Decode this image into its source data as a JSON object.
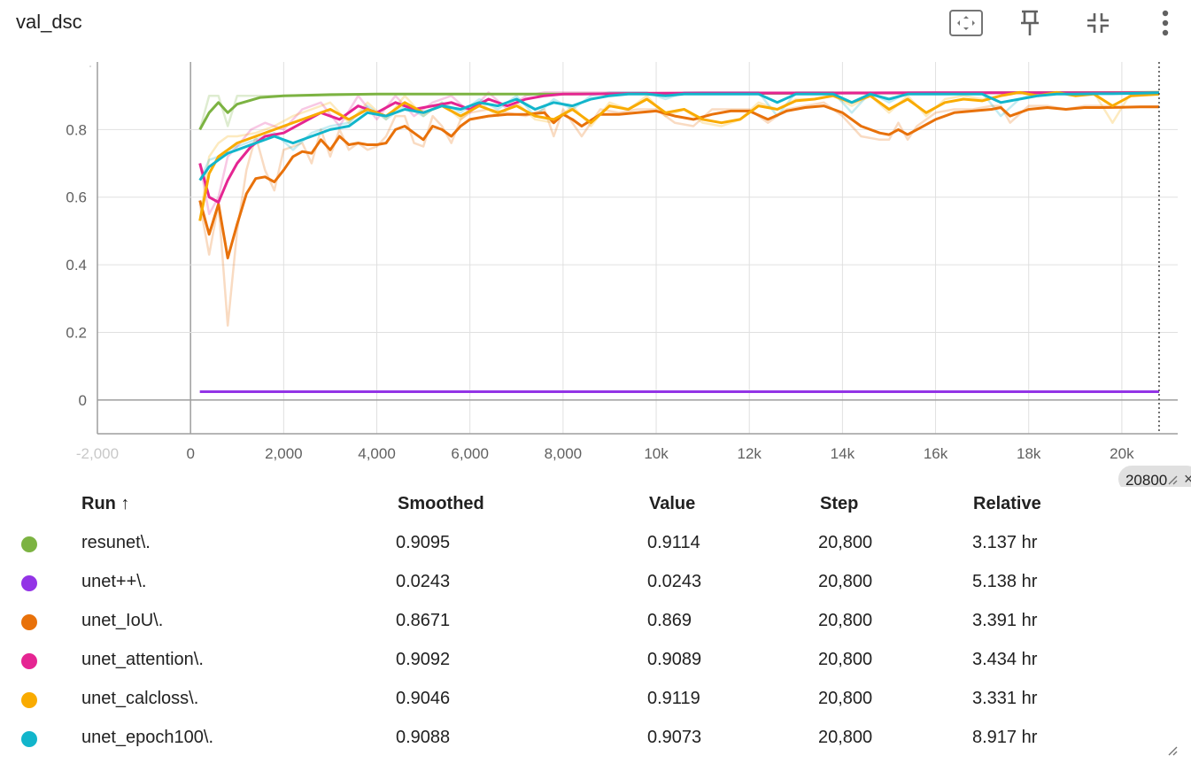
{
  "card": {
    "title": "val_dsc",
    "toolbar": [
      {
        "name": "fit-domain-icon"
      },
      {
        "name": "pin-icon"
      },
      {
        "name": "collapse-icon"
      },
      {
        "name": "more-vert-icon"
      }
    ]
  },
  "chart_data": {
    "type": "line",
    "title": "",
    "xlabel": "",
    "ylabel": "",
    "xlim": [
      -2000,
      21200
    ],
    "ylim": [
      -0.1,
      1.0
    ],
    "grid": true,
    "x_ticks": [
      {
        "v": -2000,
        "label": "-2,000"
      },
      {
        "v": 0,
        "label": "0"
      },
      {
        "v": 2000,
        "label": "2,000"
      },
      {
        "v": 4000,
        "label": "4,000"
      },
      {
        "v": 6000,
        "label": "6,000"
      },
      {
        "v": 8000,
        "label": "8,000"
      },
      {
        "v": 10000,
        "label": "10k"
      },
      {
        "v": 12000,
        "label": "12k"
      },
      {
        "v": 14000,
        "label": "14k"
      },
      {
        "v": 16000,
        "label": "16k"
      },
      {
        "v": 18000,
        "label": "18k"
      },
      {
        "v": 20000,
        "label": "20k"
      }
    ],
    "y_ticks": [
      {
        "v": 0,
        "label": "0"
      },
      {
        "v": 0.2,
        "label": "0.2"
      },
      {
        "v": 0.4,
        "label": "0.4"
      },
      {
        "v": 0.6,
        "label": "0.6"
      },
      {
        "v": 0.8,
        "label": "0.8"
      }
    ],
    "cursor": {
      "x": 20800,
      "label": "20800"
    },
    "series": [
      {
        "name": "resunet\\.",
        "color": "#7cb342",
        "x": [
          200,
          400,
          600,
          800,
          1000,
          1500,
          2000,
          3000,
          4000,
          6000,
          8000,
          10000,
          12000,
          14000,
          16000,
          18000,
          20800
        ],
        "y": [
          0.8,
          0.85,
          0.88,
          0.85,
          0.875,
          0.895,
          0.9,
          0.903,
          0.905,
          0.905,
          0.905,
          0.907,
          0.907,
          0.908,
          0.908,
          0.909,
          0.9095
        ],
        "raw": [
          0.8,
          0.9,
          0.9,
          0.81,
          0.9,
          0.9,
          0.9,
          0.905,
          0.905,
          0.905,
          0.905,
          0.908,
          0.908,
          0.908,
          0.908,
          0.91,
          0.9114
        ]
      },
      {
        "name": "unet++\\.",
        "color": "#9334e6",
        "x": [
          200,
          20800
        ],
        "y": [
          0.0243,
          0.0243
        ],
        "raw": [
          0.0243,
          0.0243
        ]
      },
      {
        "name": "unet_IoU\\.",
        "color": "#e8710a",
        "x": [
          200,
          400,
          600,
          800,
          1000,
          1200,
          1400,
          1600,
          1800,
          2000,
          2200,
          2400,
          2600,
          2800,
          3000,
          3200,
          3400,
          3600,
          3800,
          4000,
          4200,
          4400,
          4600,
          4800,
          5000,
          5200,
          5400,
          5600,
          5800,
          6000,
          6400,
          6800,
          7200,
          7600,
          7800,
          8000,
          8200,
          8400,
          8800,
          9200,
          9600,
          10000,
          10400,
          10800,
          11200,
          11600,
          12000,
          12400,
          12800,
          13200,
          13600,
          14000,
          14400,
          14800,
          15000,
          15200,
          15400,
          15600,
          16000,
          16400,
          16800,
          17200,
          17400,
          17600,
          18000,
          18400,
          18800,
          19200,
          19600,
          20000,
          20400,
          20800
        ],
        "y": [
          0.59,
          0.49,
          0.58,
          0.42,
          0.52,
          0.61,
          0.655,
          0.66,
          0.645,
          0.68,
          0.72,
          0.735,
          0.73,
          0.77,
          0.74,
          0.78,
          0.755,
          0.76,
          0.755,
          0.755,
          0.76,
          0.8,
          0.81,
          0.79,
          0.77,
          0.81,
          0.8,
          0.78,
          0.81,
          0.83,
          0.84,
          0.845,
          0.845,
          0.85,
          0.82,
          0.845,
          0.83,
          0.81,
          0.845,
          0.845,
          0.85,
          0.855,
          0.84,
          0.83,
          0.845,
          0.855,
          0.855,
          0.83,
          0.855,
          0.865,
          0.87,
          0.85,
          0.81,
          0.79,
          0.785,
          0.8,
          0.785,
          0.8,
          0.83,
          0.85,
          0.855,
          0.86,
          0.865,
          0.84,
          0.86,
          0.865,
          0.86,
          0.865,
          0.865,
          0.866,
          0.867,
          0.8671
        ],
        "raw": [
          0.58,
          0.43,
          0.58,
          0.22,
          0.5,
          0.68,
          0.78,
          0.68,
          0.62,
          0.74,
          0.75,
          0.76,
          0.7,
          0.8,
          0.72,
          0.8,
          0.74,
          0.76,
          0.74,
          0.75,
          0.78,
          0.84,
          0.84,
          0.76,
          0.75,
          0.84,
          0.81,
          0.76,
          0.83,
          0.85,
          0.86,
          0.85,
          0.84,
          0.86,
          0.78,
          0.86,
          0.82,
          0.78,
          0.86,
          0.85,
          0.86,
          0.86,
          0.82,
          0.81,
          0.86,
          0.86,
          0.86,
          0.82,
          0.86,
          0.87,
          0.88,
          0.84,
          0.78,
          0.77,
          0.77,
          0.82,
          0.77,
          0.81,
          0.85,
          0.86,
          0.86,
          0.87,
          0.87,
          0.82,
          0.87,
          0.87,
          0.86,
          0.87,
          0.87,
          0.867,
          0.868,
          0.869
        ]
      },
      {
        "name": "unet_attention\\.",
        "color": "#e52592",
        "x": [
          200,
          400,
          600,
          800,
          1000,
          1300,
          1600,
          2000,
          2400,
          2800,
          3200,
          3600,
          4000,
          4400,
          4800,
          5200,
          5600,
          6000,
          6400,
          6800,
          7200,
          7600,
          8000,
          8400,
          9000,
          10000,
          11000,
          12000,
          14000,
          16000,
          18000,
          20800
        ],
        "y": [
          0.7,
          0.6,
          0.585,
          0.65,
          0.7,
          0.75,
          0.78,
          0.79,
          0.82,
          0.85,
          0.83,
          0.87,
          0.85,
          0.88,
          0.86,
          0.87,
          0.88,
          0.86,
          0.89,
          0.87,
          0.89,
          0.9,
          0.905,
          0.905,
          0.906,
          0.907,
          0.908,
          0.908,
          0.908,
          0.909,
          0.909,
          0.9092
        ],
        "raw": [
          0.7,
          0.55,
          0.6,
          0.72,
          0.75,
          0.8,
          0.82,
          0.8,
          0.86,
          0.88,
          0.81,
          0.9,
          0.83,
          0.9,
          0.84,
          0.88,
          0.9,
          0.85,
          0.91,
          0.86,
          0.9,
          0.91,
          0.91,
          0.91,
          0.91,
          0.91,
          0.91,
          0.91,
          0.91,
          0.91,
          0.91,
          0.9089
        ]
      },
      {
        "name": "unet_calcloss\\.",
        "color": "#f9ab00",
        "x": [
          200,
          400,
          600,
          800,
          1000,
          1400,
          1800,
          2200,
          2600,
          3000,
          3400,
          3800,
          4200,
          4600,
          5000,
          5400,
          5800,
          6200,
          6600,
          7000,
          7400,
          7800,
          8200,
          8600,
          9000,
          9400,
          9800,
          10200,
          10600,
          11000,
          11400,
          11800,
          12200,
          12600,
          13000,
          13400,
          13800,
          14200,
          14600,
          15000,
          15400,
          15800,
          16200,
          16600,
          17000,
          17400,
          17800,
          18200,
          18600,
          19000,
          19400,
          19800,
          20200,
          20800
        ],
        "y": [
          0.53,
          0.67,
          0.72,
          0.74,
          0.76,
          0.78,
          0.8,
          0.82,
          0.84,
          0.86,
          0.83,
          0.86,
          0.84,
          0.88,
          0.85,
          0.87,
          0.84,
          0.87,
          0.85,
          0.87,
          0.84,
          0.83,
          0.86,
          0.82,
          0.87,
          0.86,
          0.89,
          0.85,
          0.86,
          0.83,
          0.82,
          0.83,
          0.87,
          0.86,
          0.885,
          0.89,
          0.9,
          0.88,
          0.9,
          0.86,
          0.89,
          0.85,
          0.88,
          0.89,
          0.885,
          0.9,
          0.91,
          0.9,
          0.91,
          0.9,
          0.905,
          0.87,
          0.9,
          0.9046
        ],
        "raw": [
          0.53,
          0.72,
          0.76,
          0.78,
          0.78,
          0.79,
          0.81,
          0.84,
          0.86,
          0.88,
          0.82,
          0.88,
          0.83,
          0.9,
          0.84,
          0.88,
          0.83,
          0.88,
          0.84,
          0.88,
          0.83,
          0.82,
          0.87,
          0.81,
          0.88,
          0.86,
          0.9,
          0.84,
          0.86,
          0.82,
          0.81,
          0.83,
          0.88,
          0.86,
          0.89,
          0.89,
          0.9,
          0.87,
          0.9,
          0.85,
          0.9,
          0.84,
          0.89,
          0.9,
          0.89,
          0.9,
          0.91,
          0.9,
          0.91,
          0.9,
          0.91,
          0.82,
          0.91,
          0.9119
        ]
      },
      {
        "name": "unet_epoch100\\.",
        "color": "#12b5cb",
        "x": [
          200,
          400,
          600,
          800,
          1000,
          1400,
          1800,
          2200,
          2600,
          3000,
          3400,
          3800,
          4200,
          4600,
          5000,
          5400,
          5800,
          6200,
          6600,
          7000,
          7400,
          7800,
          8200,
          8600,
          9000,
          9400,
          9800,
          10200,
          10600,
          11000,
          11400,
          11800,
          12200,
          12600,
          13000,
          13400,
          13800,
          14200,
          14600,
          15000,
          15400,
          15800,
          16200,
          16600,
          17000,
          17400,
          17800,
          18200,
          18600,
          19000,
          19400,
          19800,
          20200,
          20800
        ],
        "y": [
          0.65,
          0.69,
          0.71,
          0.73,
          0.74,
          0.76,
          0.78,
          0.76,
          0.78,
          0.8,
          0.81,
          0.85,
          0.84,
          0.86,
          0.85,
          0.87,
          0.86,
          0.88,
          0.87,
          0.89,
          0.86,
          0.88,
          0.87,
          0.89,
          0.9,
          0.905,
          0.905,
          0.9,
          0.905,
          0.905,
          0.905,
          0.905,
          0.905,
          0.88,
          0.905,
          0.905,
          0.905,
          0.88,
          0.905,
          0.89,
          0.905,
          0.905,
          0.905,
          0.905,
          0.905,
          0.88,
          0.89,
          0.9,
          0.905,
          0.905,
          0.906,
          0.906,
          0.907,
          0.9088
        ],
        "raw": [
          0.65,
          0.71,
          0.72,
          0.74,
          0.75,
          0.77,
          0.79,
          0.74,
          0.79,
          0.81,
          0.82,
          0.87,
          0.83,
          0.87,
          0.84,
          0.88,
          0.85,
          0.89,
          0.86,
          0.9,
          0.84,
          0.89,
          0.86,
          0.9,
          0.91,
          0.91,
          0.91,
          0.89,
          0.91,
          0.91,
          0.91,
          0.91,
          0.91,
          0.84,
          0.91,
          0.91,
          0.91,
          0.85,
          0.91,
          0.88,
          0.91,
          0.91,
          0.91,
          0.91,
          0.91,
          0.84,
          0.89,
          0.91,
          0.91,
          0.91,
          0.91,
          0.91,
          0.91,
          0.9073
        ]
      }
    ]
  },
  "table": {
    "headers": {
      "run": "Run ↑",
      "smoothed": "Smoothed",
      "value": "Value",
      "step": "Step",
      "relative": "Relative"
    },
    "rows": [
      {
        "color": "#7cb342",
        "run": "resunet\\.",
        "smoothed": "0.9095",
        "value": "0.9114",
        "step": "20,800",
        "relative": "3.137 hr"
      },
      {
        "color": "#9334e6",
        "run": "unet++\\.",
        "smoothed": "0.0243",
        "value": "0.0243",
        "step": "20,800",
        "relative": "5.138 hr"
      },
      {
        "color": "#e8710a",
        "run": "unet_IoU\\.",
        "smoothed": "0.8671",
        "value": "0.869",
        "step": "20,800",
        "relative": "3.391 hr"
      },
      {
        "color": "#e52592",
        "run": "unet_attention\\.",
        "smoothed": "0.9092",
        "value": "0.9089",
        "step": "20,800",
        "relative": "3.434 hr"
      },
      {
        "color": "#f9ab00",
        "run": "unet_calcloss\\.",
        "smoothed": "0.9046",
        "value": "0.9119",
        "step": "20,800",
        "relative": "3.331 hr"
      },
      {
        "color": "#12b5cb",
        "run": "unet_epoch100\\.",
        "smoothed": "0.9088",
        "value": "0.9073",
        "step": "20,800",
        "relative": "8.917 hr"
      }
    ]
  }
}
